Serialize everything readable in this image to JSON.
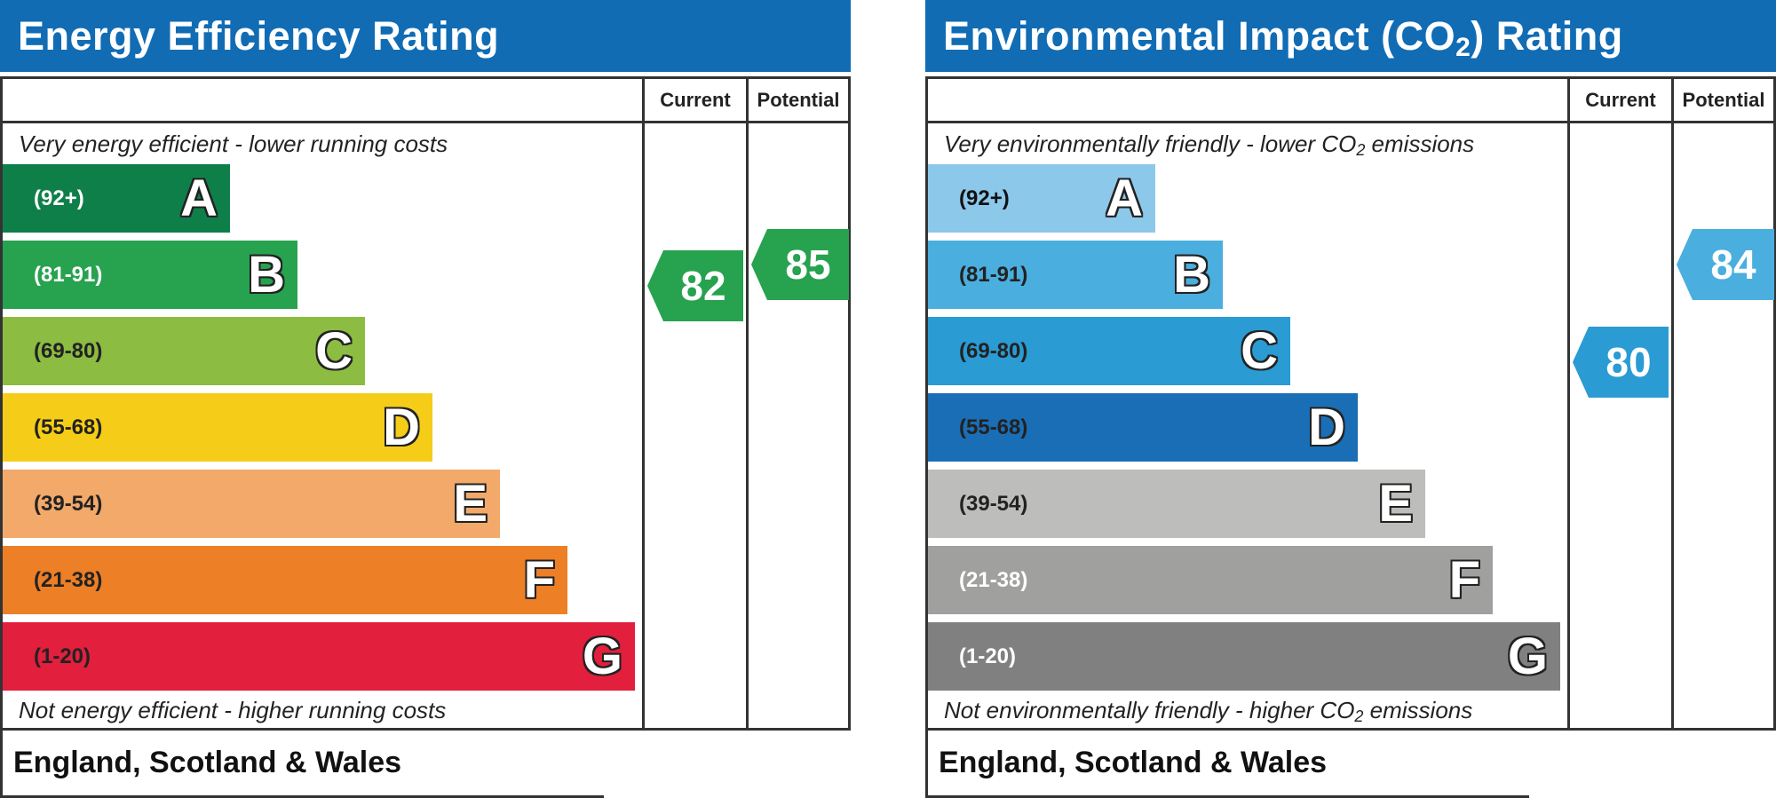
{
  "chart_data": [
    {
      "type": "bar",
      "title": "Energy Efficiency Rating",
      "column_headers": [
        "Current",
        "Potential"
      ],
      "top_caption": "Very energy efficient - lower running costs",
      "bottom_caption": "Not energy efficient - higher running costs",
      "bands": [
        {
          "letter": "A",
          "range": "(92+)",
          "color": "#0f7f4a",
          "text_color": "#ffffff"
        },
        {
          "letter": "B",
          "range": "(81-91)",
          "color": "#27a24f",
          "text_color": "#ffffff"
        },
        {
          "letter": "C",
          "range": "(69-80)",
          "color": "#8cbc41",
          "text_color": "#222222"
        },
        {
          "letter": "D",
          "range": "(55-68)",
          "color": "#f5cd18",
          "text_color": "#222222"
        },
        {
          "letter": "E",
          "range": "(39-54)",
          "color": "#f2a96a",
          "text_color": "#222222"
        },
        {
          "letter": "F",
          "range": "(21-38)",
          "color": "#ed7f26",
          "text_color": "#222222"
        },
        {
          "letter": "G",
          "range": "(1-20)",
          "color": "#e21f3d",
          "text_color": "#222222"
        }
      ],
      "current": {
        "value": 82,
        "band": "B",
        "color": "#27a24f"
      },
      "potential": {
        "value": 85,
        "band": "B",
        "color": "#27a24f"
      },
      "footer": "England, Scotland & Wales"
    },
    {
      "type": "bar",
      "title_main": "Environmental Impact (CO",
      "title_sub": "2",
      "title_end": ") Rating",
      "column_headers": [
        "Current",
        "Potential"
      ],
      "top_caption_main": "Very environmentally friendly - lower CO",
      "top_caption_sub": "2",
      "top_caption_end": " emissions",
      "bottom_caption_main": "Not environmentally friendly - higher CO",
      "bottom_caption_sub": "2",
      "bottom_caption_end": " emissions",
      "bands": [
        {
          "letter": "A",
          "range": "(92+)",
          "color": "#8cc8ea",
          "text_color": "#111111"
        },
        {
          "letter": "B",
          "range": "(81-91)",
          "color": "#4aaede",
          "text_color": "#222222"
        },
        {
          "letter": "C",
          "range": "(69-80)",
          "color": "#2a9bd3",
          "text_color": "#222222"
        },
        {
          "letter": "D",
          "range": "(55-68)",
          "color": "#1a6eb5",
          "text_color": "#222222"
        },
        {
          "letter": "E",
          "range": "(39-54)",
          "color": "#bdbdbb",
          "text_color": "#222222"
        },
        {
          "letter": "F",
          "range": "(21-38)",
          "color": "#a0a09e",
          "text_color": "#ffffff"
        },
        {
          "letter": "G",
          "range": "(1-20)",
          "color": "#808080",
          "text_color": "#ffffff"
        }
      ],
      "current": {
        "value": 80,
        "band": "C",
        "color": "#2a9bd3"
      },
      "potential": {
        "value": 84,
        "band": "B",
        "color": "#4aaede"
      },
      "footer": "England, Scotland & Wales"
    }
  ]
}
